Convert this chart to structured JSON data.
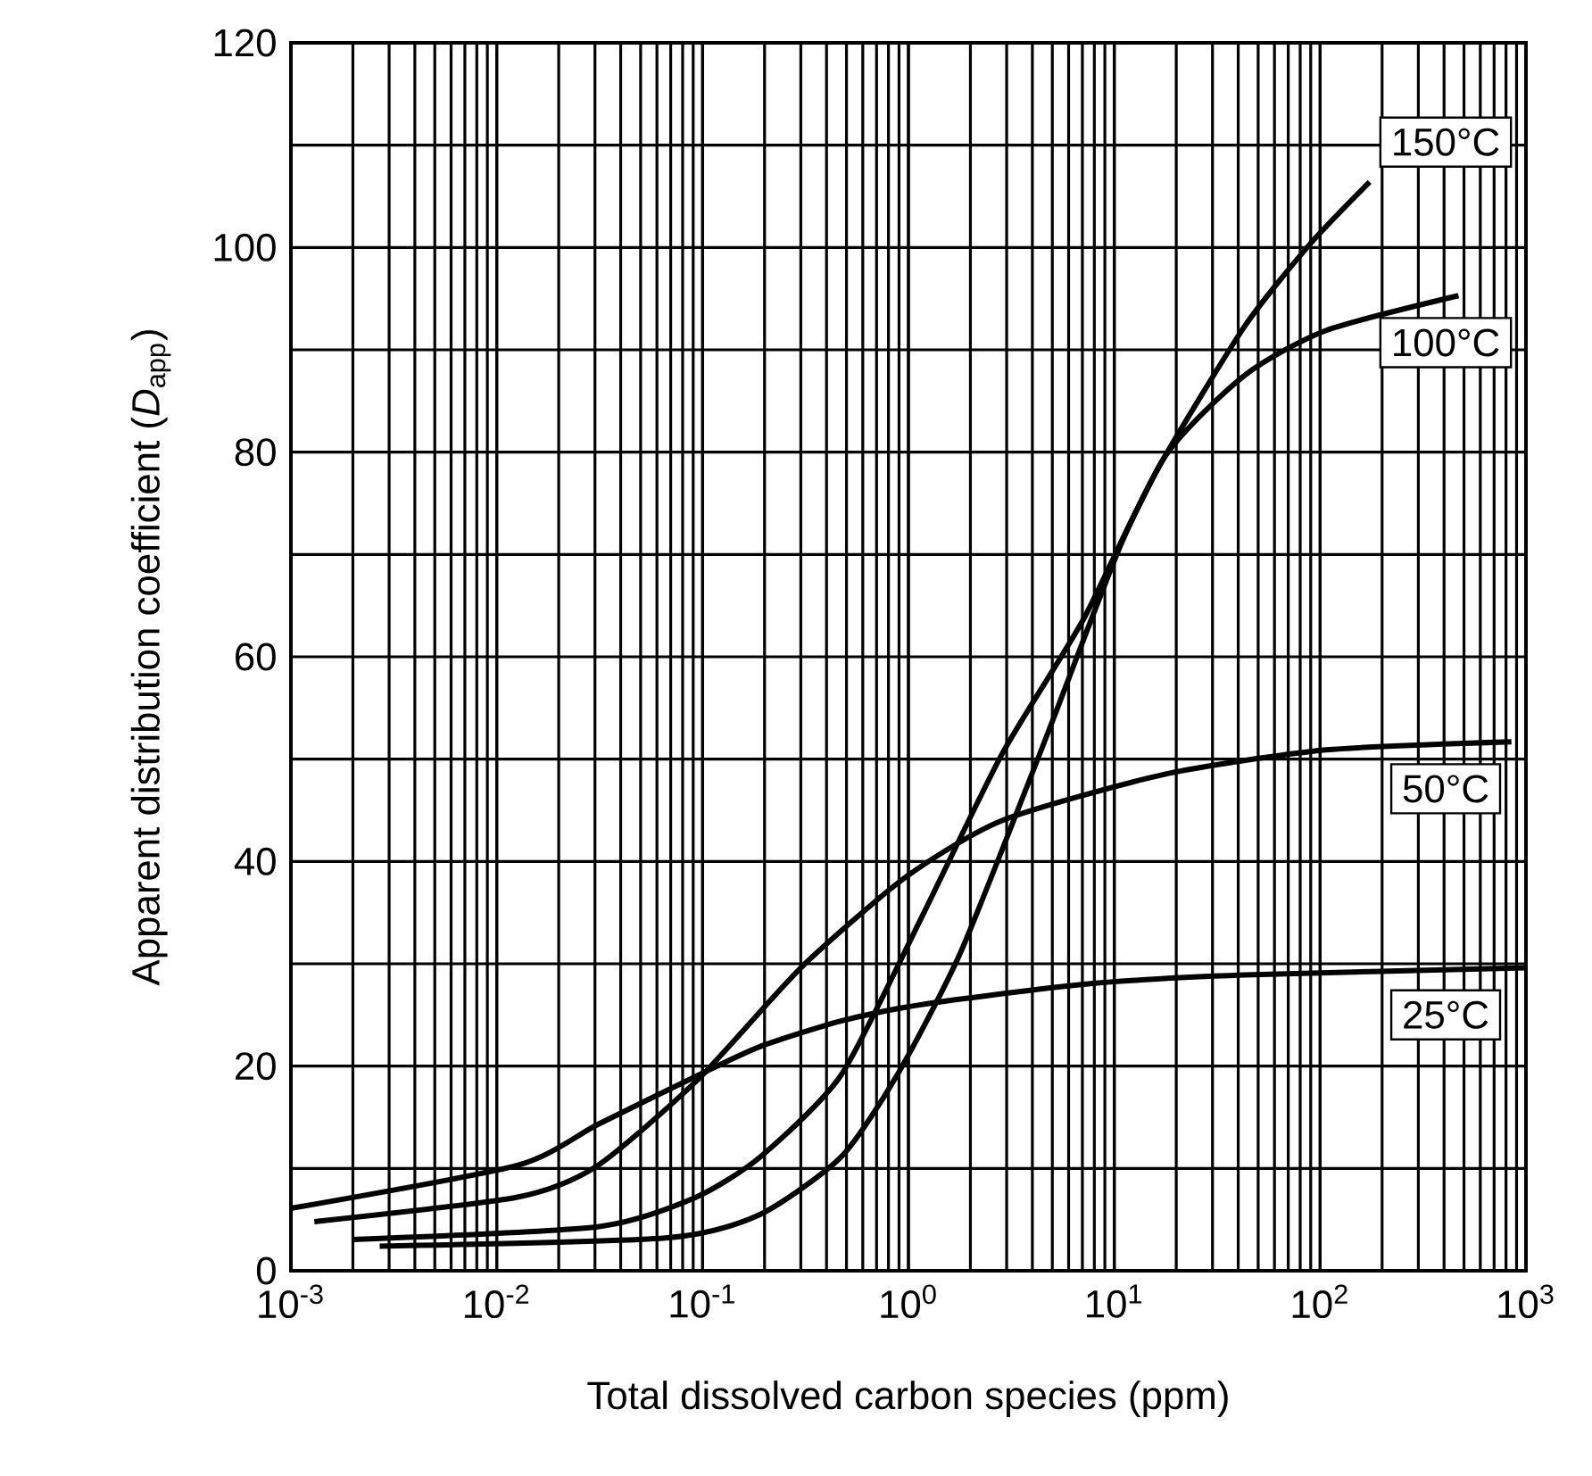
{
  "chart_data": {
    "type": "line",
    "xlabel": "Total dissolved carbon species (ppm)",
    "ylabel": "Apparent distribution coefficient (*D*$_{app}$)",
    "log": "x",
    "grid": true,
    "line_style": "solid",
    "marker": "none",
    "xlim": [
      0.001,
      1000
    ],
    "ylim": [
      0,
      120
    ],
    "xticks": [
      {
        "value": 0.001,
        "label": "10$^{-3}$"
      },
      {
        "value": 0.01,
        "label": "10$^{-2}$"
      },
      {
        "value": 0.1,
        "label": "10$^{-1}$"
      },
      {
        "value": 1,
        "label": "10$^{0}$"
      },
      {
        "value": 10,
        "label": "10$^{1}$"
      },
      {
        "value": 100,
        "label": "10$^{2}$"
      },
      {
        "value": 1000,
        "label": "10$^{3}$"
      }
    ],
    "yticks": [
      0,
      20,
      40,
      60,
      80,
      100,
      120
    ],
    "series": [
      {
        "name": "25°C",
        "color": "#000000",
        "x": [
          0.001,
          0.0126,
          0.031,
          0.095,
          0.19,
          0.47,
          1.15,
          7.1,
          43,
          1000
        ],
        "values": [
          6.1,
          10.3,
          14.3,
          19.1,
          21.9,
          24.4,
          26,
          28,
          28.9,
          29.6
        ]
      },
      {
        "name": "50°C",
        "color": "#000000",
        "x": [
          0.0013,
          0.0126,
          0.031,
          0.095,
          0.3,
          0.96,
          2.85,
          17.4,
          107,
          850
        ],
        "values": [
          4.8,
          7.2,
          10.3,
          18.7,
          29.6,
          38.4,
          44,
          48.5,
          50.9,
          51.7
        ]
      },
      {
        "name": "100°C",
        "color": "#000000",
        "x": [
          0.002,
          0.031,
          0.091,
          0.19,
          0.47,
          1.15,
          2.85,
          7.1,
          17.4,
          43,
          107,
          470
        ],
        "values": [
          3.05,
          4.3,
          7.1,
          11.1,
          19.1,
          34.4,
          50.5,
          63.7,
          79.4,
          87.5,
          91.9,
          95.3
        ]
      },
      {
        "name": "150°C",
        "color": "#000000",
        "x": [
          0.0027,
          0.066,
          0.19,
          0.47,
          0.88,
          1.8,
          4.5,
          7.1,
          11,
          17.4,
          43,
          89,
          174
        ],
        "values": [
          2.4,
          3.2,
          5.5,
          11.1,
          19.1,
          31.2,
          51.3,
          61.7,
          71.4,
          79.4,
          92.3,
          100.3,
          106.4
        ]
      }
    ]
  }
}
